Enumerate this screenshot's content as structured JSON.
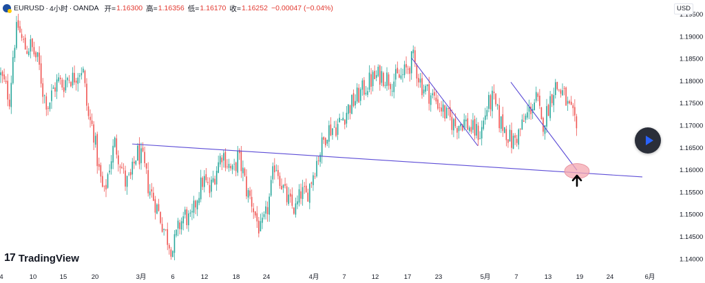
{
  "header": {
    "symbol": "EURUSD",
    "interval": "4小时",
    "exchange": "OANDA",
    "dot": "·",
    "open_label": "开=",
    "open": "1.16300",
    "high_label": "高=",
    "high": "1.16356",
    "low_label": "低=",
    "low": "1.16170",
    "close_label": "收=",
    "close": "1.16252",
    "change": "−0.00047 (−0.04%)"
  },
  "currency_button": "USD",
  "brand": {
    "mark": "17",
    "name": "TradingView"
  },
  "colors": {
    "up": "#26a69a",
    "down": "#ef5350",
    "trend": "#5b4bd6",
    "highlight": "#f4a7b0",
    "arrow": "#000000"
  },
  "icons": {
    "play": "play-icon",
    "arrow": "arrow-up-icon",
    "logo": "tradingview-logo-icon"
  },
  "chart_data": {
    "type": "candlestick",
    "title": "EURUSD · 4小时 · OANDA",
    "ylim": [
      1.1375,
      1.196
    ],
    "y_ticks": [
      "1.19500",
      "1.19000",
      "1.18500",
      "1.18000",
      "1.17500",
      "1.17000",
      "1.16500",
      "1.16000",
      "1.15500",
      "1.15000",
      "1.14500",
      "1.14000"
    ],
    "x_ticks": [
      "4",
      "10",
      "15",
      "20",
      "3月",
      "6",
      "12",
      "18",
      "24",
      "4月",
      "7",
      "12",
      "17",
      "23",
      "5月",
      "7",
      "13",
      "19",
      "24",
      "6月"
    ],
    "close_path": [
      [
        1.1815,
        1.179,
        1.176
      ],
      [
        1.184,
        1.188,
        1.1925,
        1.189,
        1.187,
        1.188,
        1.186,
        1.184
      ],
      [
        1.181,
        1.177,
        1.1745,
        1.178,
        1.18,
        1.179,
        1.181,
        1.1805,
        1.182,
        1.183
      ],
      [
        1.178,
        1.172,
        1.169,
        1.16,
        1.154,
        1.161,
        1.166,
        1.162,
        1.157,
        1.158
      ],
      [
        1.16,
        1.164,
        1.162,
        1.156,
        1.153,
        1.149,
        1.145,
        1.142,
        1.147,
        1.15
      ],
      [
        1.152,
        1.148,
        1.154,
        1.158,
        1.155,
        1.16,
        1.164,
        1.161
      ],
      [
        1.157,
        1.159,
        1.163,
        1.16,
        1.155,
        1.153,
        1.149,
        1.146,
        1.149,
        1.154
      ],
      [
        1.159,
        1.162,
        1.158,
        1.154,
        1.152,
        1.151,
        1.155,
        1.154,
        1.158,
        1.162
      ],
      [
        1.165,
        1.169,
        1.17,
        1.174,
        1.177,
        1.18,
        1.1815,
        1.18,
        1.181,
        1.185
      ],
      [
        1.181,
        1.179,
        1.177,
        1.175,
        1.172,
        1.17,
        1.171,
        1.169,
        1.168
      ],
      [
        1.172,
        1.174,
        1.176,
        1.171,
        1.169,
        1.166,
        1.168,
        1.171,
        1.174,
        1.176
      ],
      [
        1.173,
        1.17,
        1.172,
        1.176,
        1.179,
        1.178,
        1.177,
        1.174,
        1.172,
        1.168
      ],
      [
        1.165,
        1.163
      ]
    ],
    "trendlines": [
      {
        "name": "support",
        "from": {
          "x": "2月末",
          "y": 1.1658
        },
        "to": {
          "x": "5月21日",
          "y": 1.1584
        }
      },
      {
        "name": "down-1",
        "from": {
          "x": "4月17日",
          "y": 1.1851
        },
        "to": {
          "x": "4月27日",
          "y": 1.1654
        }
      },
      {
        "name": "down-2",
        "from": {
          "x": "5月7日",
          "y": 1.1797
        },
        "to": {
          "x": "5月18日",
          "y": 1.1599
        }
      }
    ],
    "annotations": [
      {
        "type": "ellipse-highlight",
        "near": 1.1597
      },
      {
        "type": "arrow-up"
      }
    ],
    "grid": false,
    "legend": "none"
  }
}
